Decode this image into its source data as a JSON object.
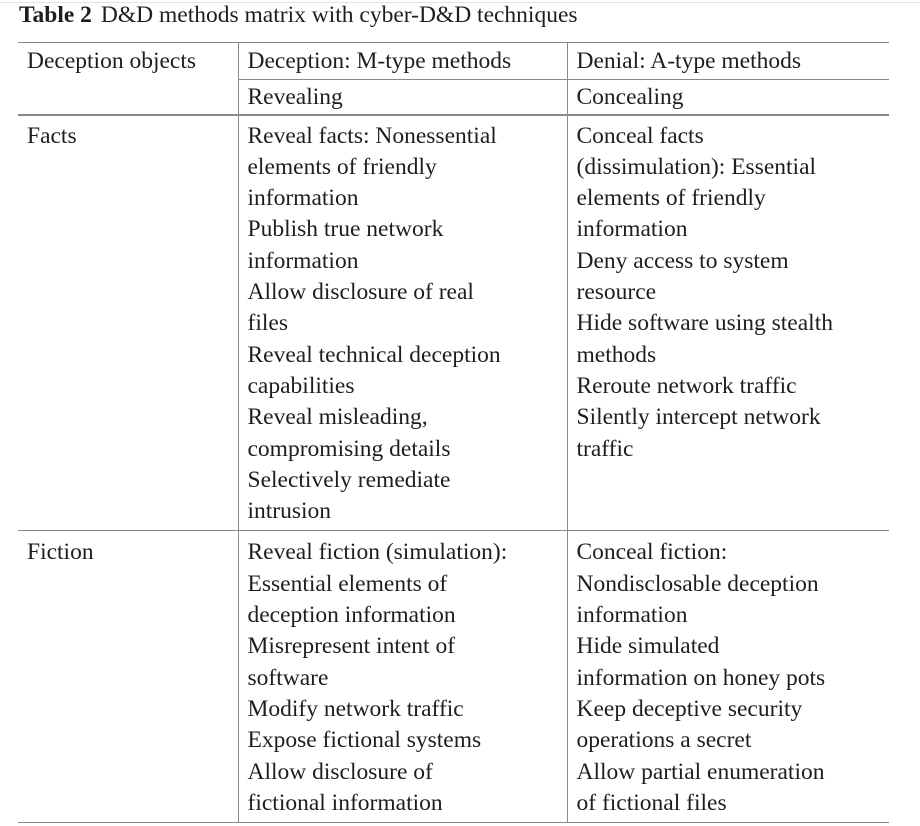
{
  "caption": {
    "label": "Table 2",
    "text": "D&D methods matrix with cyber-D&D techniques"
  },
  "header": {
    "col1": "Deception objects",
    "col2": "Deception: M-type methods",
    "col3": "Denial: A-type methods"
  },
  "subheader": {
    "col1": "",
    "col2": "Revealing",
    "col3": "Concealing"
  },
  "rows": [
    {
      "object": "Facts",
      "revealing": [
        "Reveal facts: Nonessential",
        "elements of friendly",
        "information",
        "Publish true network",
        "information",
        "Allow disclosure of real",
        "files",
        "Reveal technical deception",
        "capabilities",
        "Reveal misleading,",
        "compromising details",
        "Selectively remediate",
        "intrusion"
      ],
      "concealing": [
        "Conceal facts",
        "(dissimulation): Essential",
        "elements of friendly",
        "information",
        "Deny access to system",
        "resource",
        "Hide software using stealth",
        "methods",
        "Reroute network traffic",
        "Silently intercept network",
        "traffic"
      ]
    },
    {
      "object": "Fiction",
      "revealing": [
        "Reveal fiction (simulation):",
        "Essential elements of",
        "deception information",
        "Misrepresent intent of",
        "software",
        "Modify network traffic",
        "Expose fictional systems",
        "Allow disclosure of",
        "fictional information"
      ],
      "concealing": [
        "Conceal fiction:",
        "Nondisclosable deception",
        "information",
        "Hide simulated",
        "information on honey pots",
        "Keep deceptive security",
        "operations a secret",
        "Allow partial enumeration",
        "of fictional files"
      ]
    }
  ]
}
